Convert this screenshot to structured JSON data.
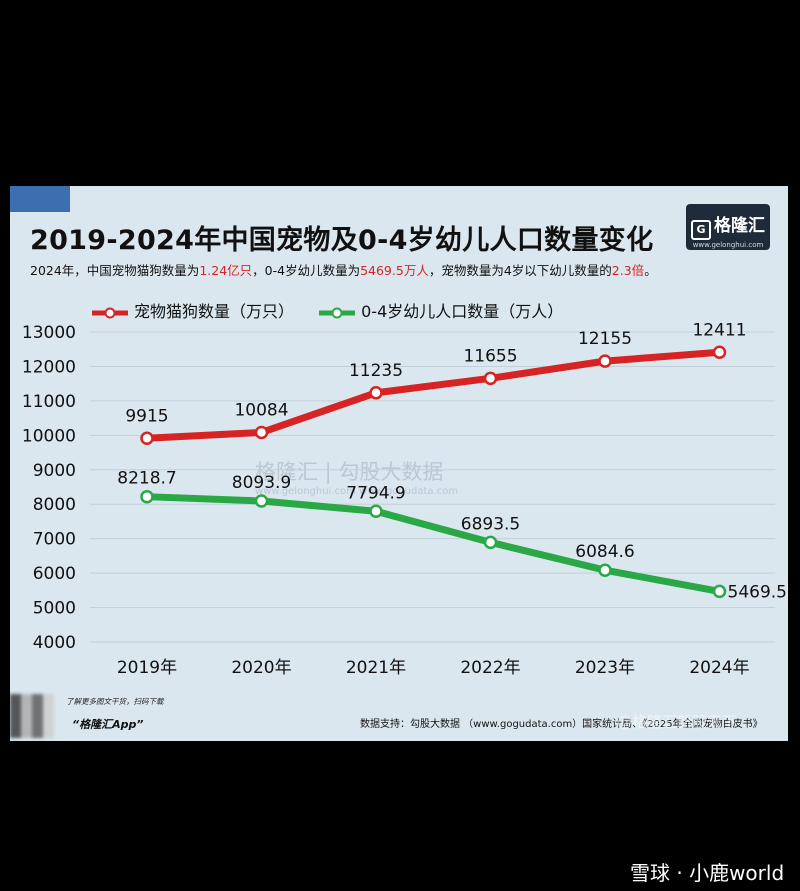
{
  "header": {
    "title": "2019-2024年中国宠物及0-4岁幼儿人口数量变化",
    "subtitle_parts": [
      {
        "text": "2024年，中国宠物猫狗数量为",
        "hl": false
      },
      {
        "text": "1.24亿只",
        "hl": true
      },
      {
        "text": "，0-4岁幼儿数量为",
        "hl": false
      },
      {
        "text": "5469.5万人",
        "hl": true
      },
      {
        "text": "，宠物数量为4岁以下幼儿数量的",
        "hl": false
      },
      {
        "text": "2.3倍",
        "hl": true
      },
      {
        "text": "。",
        "hl": false
      }
    ]
  },
  "logo": {
    "text": "格隆汇",
    "glyph": "G",
    "url": "www.gelonghui.com"
  },
  "watermark": {
    "text": "格隆汇 | 勾股大数据",
    "url": "www.gelonghui.com   www.gogudata.com"
  },
  "footer": {
    "note": "了解更多图文干货，扫码下载",
    "app": "“格隆汇App”",
    "source": "数据支持：勾股大数据 （www.gogudata.com）国家统计局、《2025年全国宠物白皮书》"
  },
  "overlay_watermarks": {
    "mid": "@格隆汇新股天下",
    "bottom": "雪球 · 小鹿world"
  },
  "colors": {
    "pets": "#d62424",
    "children": "#2aa845",
    "background": "#dbe7ee",
    "grid": "#c3d0da"
  },
  "chart_data": {
    "type": "line",
    "categories": [
      "2019年",
      "2020年",
      "2021年",
      "2022年",
      "2023年",
      "2024年"
    ],
    "series": [
      {
        "name": "宠物猫狗数量（万只）",
        "values": [
          9915,
          10084,
          11235,
          11655,
          12155,
          12411
        ],
        "labels": [
          "9915",
          "10084",
          "11235",
          "11655",
          "12155",
          "12411"
        ]
      },
      {
        "name": "0-4岁幼儿人口数量（万人）",
        "values": [
          8218.7,
          8093.9,
          7794.9,
          6893.5,
          6084.6,
          5469.5
        ],
        "labels": [
          "8218.7",
          "8093.9",
          "7794.9",
          "6893.5",
          "6084.6",
          "5469.5"
        ]
      }
    ],
    "y_ticks": [
      "4000",
      "5000",
      "6000",
      "7000",
      "8000",
      "9000",
      "10000",
      "11000",
      "12000",
      "13000"
    ],
    "ylim": [
      4000,
      13000
    ],
    "grid": true,
    "legend": "top-left"
  }
}
